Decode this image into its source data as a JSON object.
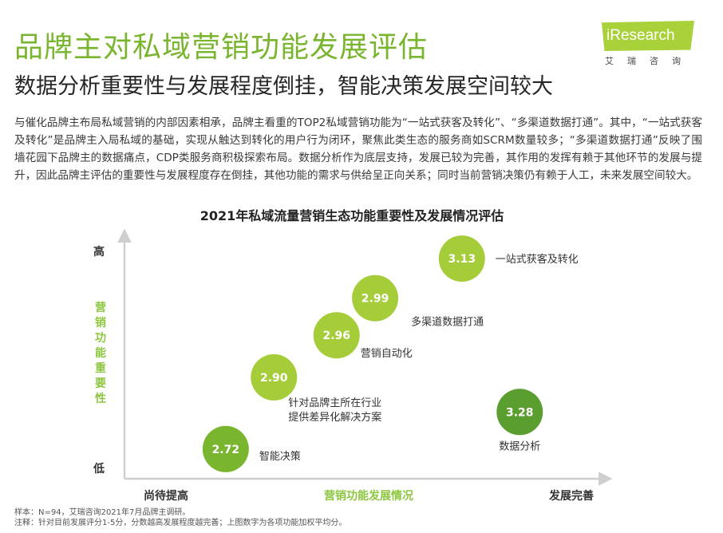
{
  "header": {
    "title": "品牌主对私域营销功能发展评估",
    "subtitle": "数据分析重要性与发展程度倒挂，智能决策发展空间较大"
  },
  "logo": {
    "text": "iResearch",
    "cn": "艾瑞咨询"
  },
  "description": "与催化品牌主布局私域营销的内部因素相承，品牌主看重的TOP2私域营销功能为“一站式获客及转化”、“多渠道数据打通”。其中，“一站式获客及转化”是品牌主入局私域的基础，实现从触达到转化的用户行为闭环，聚焦此类生态的服务商如SCRM数量较多；“多渠道数据打通”反映了围墙花园下品牌主的数据痛点，CDP类服务商积极探索布局。数据分析作为底层支持，发展已较为完善，其作用的发挥有赖于其他环节的发展与提升，因此品牌主评估的重要性与发展程度存在倒挂，其他功能的需求与供给呈正向关系；同时当前营销决策仍有赖于人工，未来发展空间较大。",
  "chart_data": {
    "type": "scatter",
    "title": "2021年私域流量营销生态功能重要性及发展情况评估",
    "xlabel": "营销功能发展情况",
    "ylabel": "营销功能重要性",
    "x_low_label": "尚待提高",
    "x_high_label": "发展完善",
    "y_high_label": "高",
    "y_low_label": "低",
    "points": [
      {
        "name": "一站式获客及转化",
        "value": "3.13",
        "x": 0.7,
        "y": 0.89,
        "color": "#a5cd39"
      },
      {
        "name": "多渠道数据打通",
        "value": "2.99",
        "x": 0.52,
        "y": 0.73,
        "color": "#a5cd39"
      },
      {
        "name": "营销自动化",
        "value": "2.96",
        "x": 0.44,
        "y": 0.58,
        "color": "#a5cd39"
      },
      {
        "name": "针对品牌主所在行业提供差异化解决方案",
        "value": "2.90",
        "x": 0.31,
        "y": 0.41,
        "color": "#a5cd39"
      },
      {
        "name": "智能决策",
        "value": "2.72",
        "x": 0.21,
        "y": 0.12,
        "color": "#7ab52f"
      },
      {
        "name": "数据分析",
        "value": "3.28",
        "x": 0.82,
        "y": 0.27,
        "color": "#5a9e2f"
      }
    ]
  },
  "notes": {
    "sample": "样本：N=94，艾瑞咨询2021年7月品牌主调研。",
    "note": "注释：针对目前发展评分1-5分，分数越高发展程度越完善；上图数字为各项功能加权平均分。"
  }
}
